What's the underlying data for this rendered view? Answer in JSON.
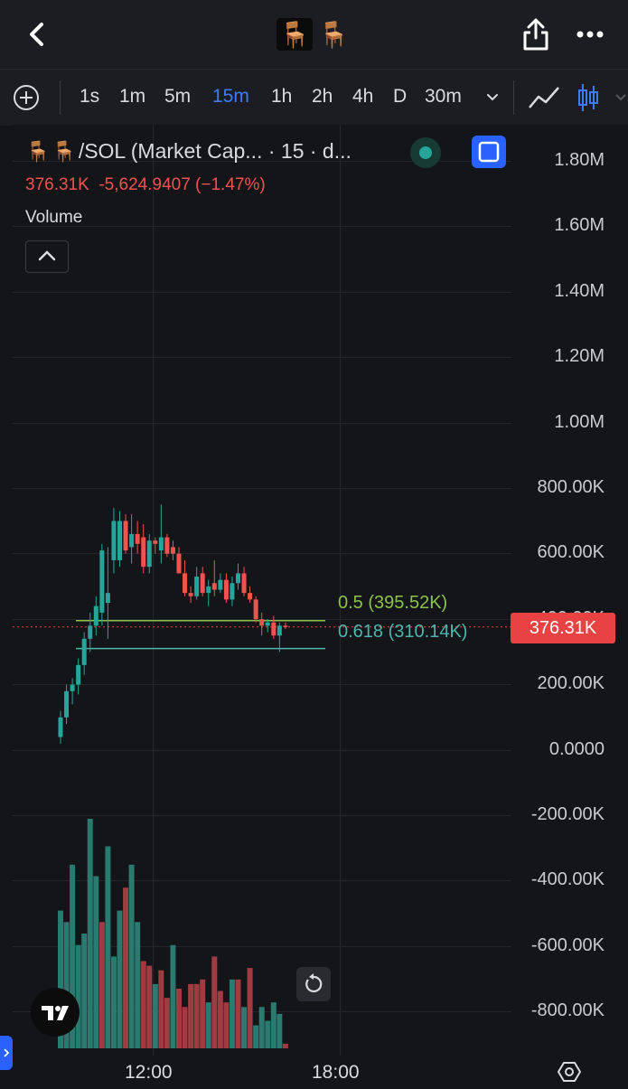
{
  "header": {
    "back_icon": "chevron-left-icon",
    "token_emoji": "🪑",
    "share_icon": "share-icon",
    "more_icon": "more-dots-icon"
  },
  "toolbar": {
    "add_icon": "plus-circle-icon",
    "timeframes": [
      "1s",
      "1m",
      "5m",
      "15m",
      "1h",
      "2h",
      "4h",
      "D",
      "30m"
    ],
    "active_timeframe": "15m",
    "dropdown_icon": "chevron-down-icon",
    "line_tool_icon": "line-chart-icon",
    "candle_tool_icon": "candlestick-icon"
  },
  "legend": {
    "emoji": "🪑",
    "title": "/SOL (Market Cap... · 15 · d...",
    "price": "376.31K",
    "change": "-5,624.9407 (−1.47%)",
    "volume_label": "Volume",
    "collapse_icon": "chevron-up-icon",
    "status_icon": "live-status-icon",
    "fullscreen_icon": "fullscreen-icon"
  },
  "price_axis": {
    "labels": [
      "1.80M",
      "1.60M",
      "1.40M",
      "1.20M",
      "1.00M",
      "800.00K",
      "600.00K",
      "400.00K",
      "200.00K",
      "0.0000",
      "-200.00K",
      "-400.00K",
      "-600.00K",
      "-800.00K"
    ],
    "current_price_label": "376.31K"
  },
  "time_axis": {
    "labels": [
      "12:00",
      "18:00"
    ]
  },
  "fibonacci": [
    {
      "label": "0.5 (395.52K)",
      "color": "#8bc34a",
      "level": 395520
    },
    {
      "label": "0.618 (310.14K)",
      "color": "#4db6ac",
      "level": 310140
    }
  ],
  "colors": {
    "up": "#26a69a",
    "down": "#ef5350",
    "volume_up": "#2a7a70",
    "volume_down": "#9e3c41",
    "accent": "#3e7bfa"
  },
  "controls": {
    "reset_icon": "reset-rotate-icon",
    "logo_icon": "tradingview-logo-icon",
    "settings_icon": "settings-gear-icon",
    "side_panel_icon": "side-panel-toggle-icon"
  },
  "chart_data": {
    "type": "candlestick",
    "ylim": [
      -900000,
      1900000
    ],
    "candles": [
      {
        "o": 40000,
        "h": 120000,
        "l": 20000,
        "c": 100000
      },
      {
        "o": 100000,
        "h": 200000,
        "l": 80000,
        "c": 180000
      },
      {
        "o": 180000,
        "h": 220000,
        "l": 140000,
        "c": 200000
      },
      {
        "o": 200000,
        "h": 280000,
        "l": 170000,
        "c": 260000
      },
      {
        "o": 260000,
        "h": 360000,
        "l": 230000,
        "c": 340000
      },
      {
        "o": 340000,
        "h": 420000,
        "l": 300000,
        "c": 380000
      },
      {
        "o": 380000,
        "h": 470000,
        "l": 350000,
        "c": 440000
      },
      {
        "o": 420000,
        "h": 630000,
        "l": 380000,
        "c": 610000
      },
      {
        "o": 450000,
        "h": 620000,
        "l": 340000,
        "c": 480000
      },
      {
        "o": 580000,
        "h": 740000,
        "l": 540000,
        "c": 700000
      },
      {
        "o": 580000,
        "h": 730000,
        "l": 560000,
        "c": 700000
      },
      {
        "o": 700000,
        "h": 720000,
        "l": 600000,
        "c": 610000
      },
      {
        "o": 620000,
        "h": 720000,
        "l": 570000,
        "c": 660000
      },
      {
        "o": 660000,
        "h": 700000,
        "l": 600000,
        "c": 630000
      },
      {
        "o": 650000,
        "h": 690000,
        "l": 540000,
        "c": 560000
      },
      {
        "o": 560000,
        "h": 660000,
        "l": 540000,
        "c": 640000
      },
      {
        "o": 640000,
        "h": 650000,
        "l": 600000,
        "c": 630000
      },
      {
        "o": 610000,
        "h": 750000,
        "l": 570000,
        "c": 650000
      },
      {
        "o": 650000,
        "h": 660000,
        "l": 590000,
        "c": 600000
      },
      {
        "o": 620000,
        "h": 640000,
        "l": 580000,
        "c": 600000
      },
      {
        "o": 600000,
        "h": 620000,
        "l": 560000,
        "c": 540000
      },
      {
        "o": 540000,
        "h": 580000,
        "l": 470000,
        "c": 480000
      },
      {
        "o": 480000,
        "h": 500000,
        "l": 450000,
        "c": 470000
      },
      {
        "o": 470000,
        "h": 560000,
        "l": 460000,
        "c": 530000
      },
      {
        "o": 540000,
        "h": 560000,
        "l": 470000,
        "c": 480000
      },
      {
        "o": 480000,
        "h": 520000,
        "l": 440000,
        "c": 500000
      },
      {
        "o": 510000,
        "h": 580000,
        "l": 470000,
        "c": 490000
      },
      {
        "o": 490000,
        "h": 540000,
        "l": 480000,
        "c": 520000
      },
      {
        "o": 520000,
        "h": 540000,
        "l": 450000,
        "c": 460000
      },
      {
        "o": 460000,
        "h": 530000,
        "l": 440000,
        "c": 510000
      },
      {
        "o": 510000,
        "h": 570000,
        "l": 490000,
        "c": 540000
      },
      {
        "o": 540000,
        "h": 560000,
        "l": 470000,
        "c": 480000
      },
      {
        "o": 480000,
        "h": 500000,
        "l": 450000,
        "c": 460000
      },
      {
        "o": 460000,
        "h": 470000,
        "l": 390000,
        "c": 400000
      },
      {
        "o": 400000,
        "h": 420000,
        "l": 350000,
        "c": 380000
      },
      {
        "o": 380000,
        "h": 400000,
        "l": 360000,
        "c": 390000
      },
      {
        "o": 390000,
        "h": 410000,
        "l": 340000,
        "c": 350000
      },
      {
        "o": 350000,
        "h": 390000,
        "l": 300000,
        "c": 380000
      },
      {
        "o": 380000,
        "h": 390000,
        "l": 370000,
        "c": 376310
      }
    ],
    "volume": [
      {
        "v": 0.6,
        "up": true
      },
      {
        "v": 0.55,
        "up": true
      },
      {
        "v": 0.8,
        "up": true
      },
      {
        "v": 0.45,
        "up": true
      },
      {
        "v": 0.5,
        "up": true
      },
      {
        "v": 1.0,
        "up": true
      },
      {
        "v": 0.75,
        "up": true
      },
      {
        "v": 0.55,
        "up": false
      },
      {
        "v": 0.88,
        "up": true
      },
      {
        "v": 0.4,
        "up": true
      },
      {
        "v": 0.6,
        "up": true
      },
      {
        "v": 0.7,
        "up": false
      },
      {
        "v": 0.8,
        "up": true
      },
      {
        "v": 0.55,
        "up": true
      },
      {
        "v": 0.38,
        "up": false
      },
      {
        "v": 0.36,
        "up": false
      },
      {
        "v": 0.28,
        "up": true
      },
      {
        "v": 0.34,
        "up": false
      },
      {
        "v": 0.22,
        "up": false
      },
      {
        "v": 0.45,
        "up": true
      },
      {
        "v": 0.26,
        "up": false
      },
      {
        "v": 0.18,
        "up": false
      },
      {
        "v": 0.28,
        "up": false
      },
      {
        "v": 0.28,
        "up": false
      },
      {
        "v": 0.3,
        "up": false
      },
      {
        "v": 0.2,
        "up": true
      },
      {
        "v": 0.4,
        "up": false
      },
      {
        "v": 0.25,
        "up": false
      },
      {
        "v": 0.2,
        "up": false
      },
      {
        "v": 0.3,
        "up": true
      },
      {
        "v": 0.3,
        "up": false
      },
      {
        "v": 0.18,
        "up": true
      },
      {
        "v": 0.35,
        "up": false
      },
      {
        "v": 0.1,
        "up": true
      },
      {
        "v": 0.18,
        "up": true
      },
      {
        "v": 0.12,
        "up": true
      },
      {
        "v": 0.2,
        "up": true
      },
      {
        "v": 0.15,
        "up": true
      },
      {
        "v": 0.02,
        "up": false
      }
    ]
  }
}
